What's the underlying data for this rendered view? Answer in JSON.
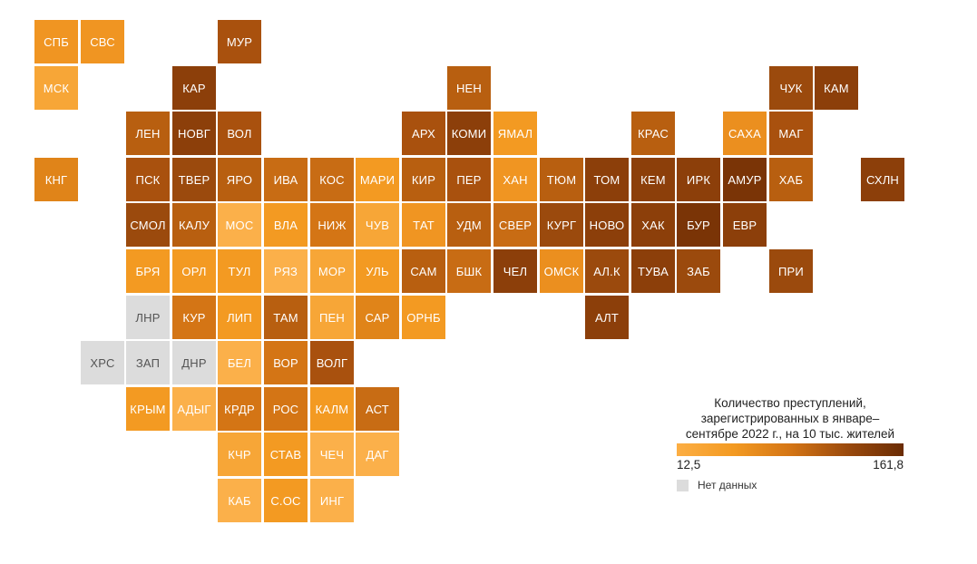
{
  "legend": {
    "title": "Количество преступлений, зарегистрированных в январе–сентябре 2022 г., на 10 тыс. жителей",
    "min_label": "12,5",
    "max_label": "161,8",
    "nodata_label": "Нет данных",
    "nodata_color": "#dcdcdc",
    "scale_colors": [
      "#fcae44",
      "#f39a22",
      "#d47515",
      "#9b4a0d",
      "#6a2c04"
    ]
  },
  "regions": [
    {
      "code": "СПБ",
      "row": 0,
      "col": 0,
      "color": "#f09522"
    },
    {
      "code": "СВС",
      "row": 0,
      "col": 1,
      "color": "#f09522"
    },
    {
      "code": "МУР",
      "row": 0,
      "col": 4,
      "color": "#a9510e"
    },
    {
      "code": "МСК",
      "row": 1,
      "col": 0,
      "color": "#f7a637"
    },
    {
      "code": "КАР",
      "row": 1,
      "col": 3,
      "color": "#8c3f0a"
    },
    {
      "code": "НЕН",
      "row": 1,
      "col": 9,
      "color": "#b85f10"
    },
    {
      "code": "ЧУК",
      "row": 1,
      "col": 16,
      "color": "#9b4a0d"
    },
    {
      "code": "КАМ",
      "row": 1,
      "col": 17,
      "color": "#8c3f0a"
    },
    {
      "code": "ЛЕН",
      "row": 2,
      "col": 2,
      "color": "#b85f10"
    },
    {
      "code": "НОВГ",
      "row": 2,
      "col": 3,
      "color": "#8c3f0a"
    },
    {
      "code": "ВОЛ",
      "row": 2,
      "col": 4,
      "color": "#a9510e"
    },
    {
      "code": "АРХ",
      "row": 2,
      "col": 8,
      "color": "#a9510e"
    },
    {
      "code": "КОМИ",
      "row": 2,
      "col": 9,
      "color": "#8c3f0a"
    },
    {
      "code": "ЯМАЛ",
      "row": 2,
      "col": 10,
      "color": "#f39a22"
    },
    {
      "code": "КРАС",
      "row": 2,
      "col": 13,
      "color": "#b85f10"
    },
    {
      "code": "САХА",
      "row": 2,
      "col": 15,
      "color": "#eb8f1f"
    },
    {
      "code": "МАГ",
      "row": 2,
      "col": 16,
      "color": "#a9510e"
    },
    {
      "code": "КНГ",
      "row": 3,
      "col": 0,
      "color": "#e08419"
    },
    {
      "code": "ПСК",
      "row": 3,
      "col": 2,
      "color": "#a9510e"
    },
    {
      "code": "ТВЕР",
      "row": 3,
      "col": 3,
      "color": "#9b4a0d"
    },
    {
      "code": "ЯРО",
      "row": 3,
      "col": 4,
      "color": "#b85f10"
    },
    {
      "code": "ИВА",
      "row": 3,
      "col": 5,
      "color": "#c86c14"
    },
    {
      "code": "КОС",
      "row": 3,
      "col": 6,
      "color": "#c86c14"
    },
    {
      "code": "МАРИ",
      "row": 3,
      "col": 7,
      "color": "#f39a22"
    },
    {
      "code": "КИР",
      "row": 3,
      "col": 8,
      "color": "#b85f10"
    },
    {
      "code": "ПЕР",
      "row": 3,
      "col": 9,
      "color": "#a9510e"
    },
    {
      "code": "ХАН",
      "row": 3,
      "col": 10,
      "color": "#f09522"
    },
    {
      "code": "ТЮМ",
      "row": 3,
      "col": 11,
      "color": "#b85f10"
    },
    {
      "code": "ТОМ",
      "row": 3,
      "col": 12,
      "color": "#8c3f0a"
    },
    {
      "code": "КЕМ",
      "row": 3,
      "col": 13,
      "color": "#8c3f0a"
    },
    {
      "code": "ИРК",
      "row": 3,
      "col": 14,
      "color": "#8c3f0a"
    },
    {
      "code": "АМУР",
      "row": 3,
      "col": 15,
      "color": "#7a3406"
    },
    {
      "code": "ХАБ",
      "row": 3,
      "col": 16,
      "color": "#b85f10"
    },
    {
      "code": "СХЛН",
      "row": 3,
      "col": 18,
      "color": "#8c3f0a"
    },
    {
      "code": "СМОЛ",
      "row": 4,
      "col": 2,
      "color": "#9b4a0d"
    },
    {
      "code": "КАЛУ",
      "row": 4,
      "col": 3,
      "color": "#b85f10"
    },
    {
      "code": "МОС",
      "row": 4,
      "col": 4,
      "color": "#fbb04a"
    },
    {
      "code": "ВЛА",
      "row": 4,
      "col": 5,
      "color": "#f39a22"
    },
    {
      "code": "НИЖ",
      "row": 4,
      "col": 6,
      "color": "#d47515"
    },
    {
      "code": "ЧУВ",
      "row": 4,
      "col": 7,
      "color": "#f7a637"
    },
    {
      "code": "ТАТ",
      "row": 4,
      "col": 8,
      "color": "#f09522"
    },
    {
      "code": "УДМ",
      "row": 4,
      "col": 9,
      "color": "#b85f10"
    },
    {
      "code": "СВЕР",
      "row": 4,
      "col": 10,
      "color": "#c86c14"
    },
    {
      "code": "КУРГ",
      "row": 4,
      "col": 11,
      "color": "#9b4a0d"
    },
    {
      "code": "НОВО",
      "row": 4,
      "col": 12,
      "color": "#8c3f0a"
    },
    {
      "code": "ХАК",
      "row": 4,
      "col": 13,
      "color": "#8c3f0a"
    },
    {
      "code": "БУР",
      "row": 4,
      "col": 14,
      "color": "#7a3406"
    },
    {
      "code": "ЕВР",
      "row": 4,
      "col": 15,
      "color": "#8c3f0a"
    },
    {
      "code": "БРЯ",
      "row": 5,
      "col": 2,
      "color": "#f39a22"
    },
    {
      "code": "ОРЛ",
      "row": 5,
      "col": 3,
      "color": "#f39a22"
    },
    {
      "code": "ТУЛ",
      "row": 5,
      "col": 4,
      "color": "#f39a22"
    },
    {
      "code": "РЯЗ",
      "row": 5,
      "col": 5,
      "color": "#fbb04a"
    },
    {
      "code": "МОР",
      "row": 5,
      "col": 6,
      "color": "#f7a637"
    },
    {
      "code": "УЛЬ",
      "row": 5,
      "col": 7,
      "color": "#f39a22"
    },
    {
      "code": "САМ",
      "row": 5,
      "col": 8,
      "color": "#b85f10"
    },
    {
      "code": "БШК",
      "row": 5,
      "col": 9,
      "color": "#c86c14"
    },
    {
      "code": "ЧЕЛ",
      "row": 5,
      "col": 10,
      "color": "#8c3f0a"
    },
    {
      "code": "ОМСК",
      "row": 5,
      "col": 11,
      "color": "#eb8f1f"
    },
    {
      "code": "АЛ.К",
      "row": 5,
      "col": 12,
      "color": "#9b4a0d"
    },
    {
      "code": "ТУВА",
      "row": 5,
      "col": 13,
      "color": "#8c3f0a"
    },
    {
      "code": "ЗАБ",
      "row": 5,
      "col": 14,
      "color": "#9b4a0d"
    },
    {
      "code": "ПРИ",
      "row": 5,
      "col": 16,
      "color": "#9b4a0d"
    },
    {
      "code": "ЛНР",
      "row": 6,
      "col": 2,
      "color": "#dcdcdc",
      "nodata": true
    },
    {
      "code": "КУР",
      "row": 6,
      "col": 3,
      "color": "#d47515"
    },
    {
      "code": "ЛИП",
      "row": 6,
      "col": 4,
      "color": "#f39a22"
    },
    {
      "code": "ТАМ",
      "row": 6,
      "col": 5,
      "color": "#b85f10"
    },
    {
      "code": "ПЕН",
      "row": 6,
      "col": 6,
      "color": "#f7a637"
    },
    {
      "code": "САР",
      "row": 6,
      "col": 7,
      "color": "#e08419"
    },
    {
      "code": "ОРНБ",
      "row": 6,
      "col": 8,
      "color": "#f39a22"
    },
    {
      "code": "АЛТ",
      "row": 6,
      "col": 12,
      "color": "#8c3f0a"
    },
    {
      "code": "ХРС",
      "row": 7,
      "col": 1,
      "color": "#dcdcdc",
      "nodata": true
    },
    {
      "code": "ЗАП",
      "row": 7,
      "col": 2,
      "color": "#dcdcdc",
      "nodata": true
    },
    {
      "code": "ДНР",
      "row": 7,
      "col": 3,
      "color": "#dcdcdc",
      "nodata": true
    },
    {
      "code": "БЕЛ",
      "row": 7,
      "col": 4,
      "color": "#fbb04a"
    },
    {
      "code": "ВОР",
      "row": 7,
      "col": 5,
      "color": "#d47515"
    },
    {
      "code": "ВОЛГ",
      "row": 7,
      "col": 6,
      "color": "#a9510e"
    },
    {
      "code": "КРЫМ",
      "row": 8,
      "col": 2,
      "color": "#f39a22"
    },
    {
      "code": "АДЫГ",
      "row": 8,
      "col": 3,
      "color": "#fbb04a"
    },
    {
      "code": "КРДР",
      "row": 8,
      "col": 4,
      "color": "#d47515"
    },
    {
      "code": "РОС",
      "row": 8,
      "col": 5,
      "color": "#d47515"
    },
    {
      "code": "КАЛМ",
      "row": 8,
      "col": 6,
      "color": "#f39a22"
    },
    {
      "code": "АСТ",
      "row": 8,
      "col": 7,
      "color": "#c86c14"
    },
    {
      "code": "КЧР",
      "row": 9,
      "col": 4,
      "color": "#f7a637"
    },
    {
      "code": "СТАВ",
      "row": 9,
      "col": 5,
      "color": "#f39a22"
    },
    {
      "code": "ЧЕЧ",
      "row": 9,
      "col": 6,
      "color": "#fbb04a"
    },
    {
      "code": "ДАГ",
      "row": 9,
      "col": 7,
      "color": "#fbb04a"
    },
    {
      "code": "КАБ",
      "row": 10,
      "col": 4,
      "color": "#fbb04a"
    },
    {
      "code": "С.ОС",
      "row": 10,
      "col": 5,
      "color": "#f39a22"
    },
    {
      "code": "ИНГ",
      "row": 10,
      "col": 6,
      "color": "#fbb04a"
    }
  ]
}
